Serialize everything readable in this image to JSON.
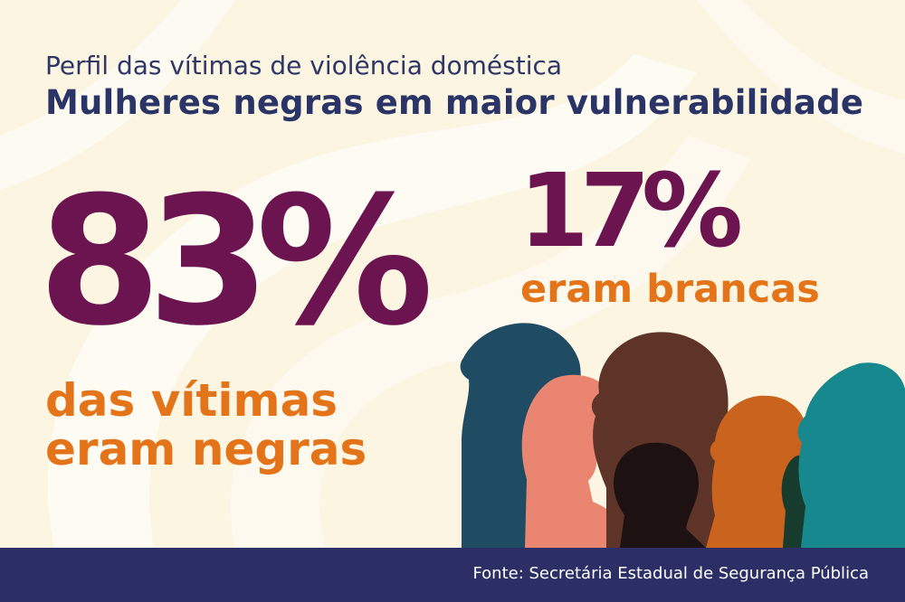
{
  "header": {
    "subtitle": "Perfil das vítimas de violência doméstica",
    "title": "Mulheres negras em maior vulnerabilidade"
  },
  "stats": {
    "black": {
      "value": "83%",
      "label_line1": "das vítimas",
      "label_line2": "eram negras"
    },
    "white": {
      "value": "17%",
      "label": "eram brancas"
    }
  },
  "footer": {
    "source": "Fonte: Secretária Estadual de Segurança Pública"
  },
  "colors": {
    "background": "#fbf5e2",
    "navy": "#2b2f66",
    "plum": "#6c1450",
    "orange": "#e3741a",
    "silhouettes": [
      "#1f4b63",
      "#e98571",
      "#5e3328",
      "#1d1111",
      "#c9631d",
      "#17898e"
    ]
  },
  "illustration": "silhouettes-of-women-profiles"
}
